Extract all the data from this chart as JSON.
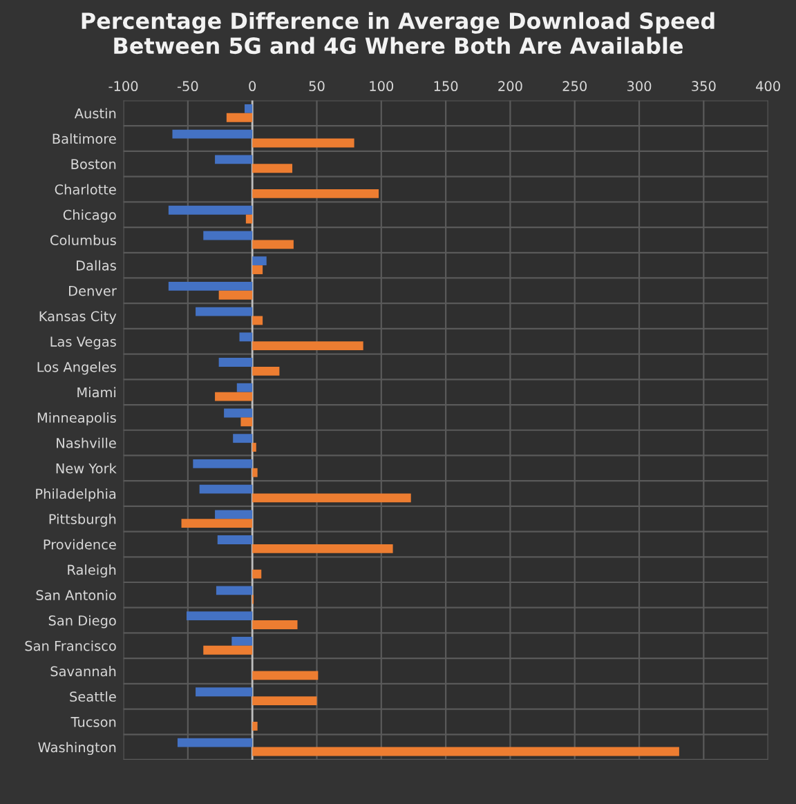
{
  "chart_data": {
    "type": "bar",
    "orientation": "horizontal",
    "title": "Percentage Difference in Average Download Speed\nBetween 5G and 4G Where Both Are Available",
    "categories": [
      "Austin",
      "Baltimore",
      "Boston",
      "Charlotte",
      "Chicago",
      "Columbus",
      "Dallas",
      "Denver",
      "Kansas City",
      "Las Vegas",
      "Los Angeles",
      "Miami",
      "Minneapolis",
      "Nashville",
      "New York",
      "Philadelphia",
      "Pittsburgh",
      "Providence",
      "Raleigh",
      "San Antonio",
      "San Diego",
      "San Francisco",
      "Savannah",
      "Seattle",
      "Tucson",
      "Washington"
    ],
    "series": [
      {
        "color": "#4472c4",
        "values": [
          -6,
          -62,
          -29,
          null,
          -65,
          -38,
          11,
          -65,
          -44,
          -10,
          -26,
          -12,
          -22,
          -15,
          -46,
          -41,
          -29,
          -27,
          null,
          -28,
          -51,
          -16,
          null,
          -44,
          null,
          -58
        ]
      },
      {
        "color": "#ed7d31",
        "values": [
          -20,
          79,
          31,
          98,
          -5,
          32,
          8,
          -26,
          8,
          86,
          21,
          -29,
          -9,
          3,
          4,
          123,
          -55,
          109,
          7,
          1,
          35,
          -38,
          51,
          50,
          4,
          331
        ]
      }
    ],
    "xlim": [
      -100,
      400
    ],
    "xticks": [
      -100,
      -50,
      0,
      50,
      100,
      150,
      200,
      250,
      300,
      350,
      400
    ],
    "grid": true
  }
}
